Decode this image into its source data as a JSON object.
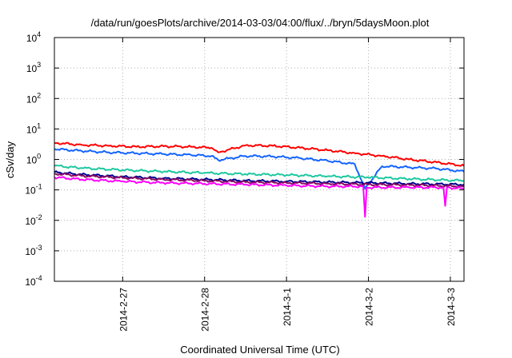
{
  "chart_data": {
    "type": "line",
    "title": "/data/run/goesPlots/archive/2014-03-03/04:00/flux/../bryn/5daysMoon.plot",
    "xlabel": "Coordinated Universal Time (UTC)",
    "ylabel": "cSv/day",
    "y_scale": "log",
    "ylim": [
      0.0001,
      10000
    ],
    "xlim": [
      "2014-02-26 04:00",
      "2014-03-03 04:00"
    ],
    "grid": true,
    "y_ticks": [
      {
        "base": "10",
        "exp": "4",
        "value": 10000
      },
      {
        "base": "10",
        "exp": "3",
        "value": 1000
      },
      {
        "base": "10",
        "exp": "2",
        "value": 100
      },
      {
        "base": "10",
        "exp": "1",
        "value": 10
      },
      {
        "base": "10",
        "exp": "0",
        "value": 1
      },
      {
        "base": "10",
        "exp": "-1",
        "value": 0.1
      },
      {
        "base": "10",
        "exp": "-2",
        "value": 0.01
      },
      {
        "base": "10",
        "exp": "-3",
        "value": 0.001
      },
      {
        "base": "10",
        "exp": "-4",
        "value": 0.0001
      }
    ],
    "x_ticks": [
      {
        "label": "2014-2-27",
        "value": "2014-02-27 00:00"
      },
      {
        "label": "2014-2-28",
        "value": "2014-02-28 00:00"
      },
      {
        "label": "2014-3-1",
        "value": "2014-03-01 00:00"
      },
      {
        "label": "2014-3-2",
        "value": "2014-03-02 00:00"
      },
      {
        "label": "2014-3-3",
        "value": "2014-03-03 00:00"
      }
    ],
    "series": [
      {
        "color": "#ff0000",
        "x": [
          "2014-02-26 04:00",
          "2014-02-26 12:00",
          "2014-02-26 20:00",
          "2014-02-27 04:00",
          "2014-02-27 12:00",
          "2014-02-27 20:00",
          "2014-02-28 02:00",
          "2014-02-28 04:00",
          "2014-02-28 12:00",
          "2014-02-28 20:00",
          "2014-03-01 04:00",
          "2014-03-01 12:00",
          "2014-03-01 20:00",
          "2014-03-02 04:00",
          "2014-03-02 12:00",
          "2014-03-02 20:00",
          "2014-03-03 04:00"
        ],
        "y": [
          3.5,
          3.0,
          2.8,
          2.6,
          2.7,
          2.6,
          2.4,
          1.7,
          2.9,
          2.8,
          2.4,
          2.0,
          1.6,
          1.3,
          1.0,
          0.8,
          0.62
        ]
      },
      {
        "color": "#1464ff",
        "x": [
          "2014-02-26 04:00",
          "2014-02-26 12:00",
          "2014-02-26 20:00",
          "2014-02-27 04:00",
          "2014-02-27 12:00",
          "2014-02-27 20:00",
          "2014-02-28 02:00",
          "2014-02-28 04:00",
          "2014-02-28 12:00",
          "2014-02-28 20:00",
          "2014-03-01 04:00",
          "2014-03-01 12:00",
          "2014-03-01 20:00",
          "2014-03-01 23:00",
          "2014-03-02 04:00",
          "2014-03-02 12:00",
          "2014-03-02 20:00",
          "2014-03-03 04:00"
        ],
        "y": [
          2.2,
          1.9,
          1.7,
          1.6,
          1.5,
          1.4,
          1.3,
          0.95,
          1.3,
          1.25,
          1.1,
          0.9,
          0.7,
          0.11,
          0.6,
          0.55,
          0.5,
          0.4
        ]
      },
      {
        "color": "#1ec8a0",
        "x": [
          "2014-02-26 04:00",
          "2014-02-26 12:00",
          "2014-02-27 00:00",
          "2014-02-27 12:00",
          "2014-02-28 00:00",
          "2014-02-28 12:00",
          "2014-03-01 00:00",
          "2014-03-01 12:00",
          "2014-03-02 00:00",
          "2014-03-02 12:00",
          "2014-03-03 04:00"
        ],
        "y": [
          0.62,
          0.52,
          0.45,
          0.4,
          0.36,
          0.33,
          0.31,
          0.28,
          0.26,
          0.23,
          0.2
        ]
      },
      {
        "color": "#000090",
        "x": [
          "2014-02-26 04:00",
          "2014-02-26 12:00",
          "2014-02-27 00:00",
          "2014-02-27 12:00",
          "2014-02-28 00:00",
          "2014-02-28 12:00",
          "2014-03-01 00:00",
          "2014-03-01 12:00",
          "2014-03-02 00:00",
          "2014-03-02 12:00",
          "2014-03-03 04:00"
        ],
        "y": [
          0.38,
          0.32,
          0.27,
          0.24,
          0.22,
          0.2,
          0.19,
          0.18,
          0.17,
          0.16,
          0.15
        ]
      },
      {
        "color": "#8c0a64",
        "x": [
          "2014-02-26 04:00",
          "2014-02-26 12:00",
          "2014-02-27 00:00",
          "2014-02-27 12:00",
          "2014-02-28 00:00",
          "2014-02-28 12:00",
          "2014-03-01 00:00",
          "2014-03-01 12:00",
          "2014-03-02 00:00",
          "2014-03-02 12:00",
          "2014-03-03 04:00"
        ],
        "y": [
          0.34,
          0.29,
          0.25,
          0.22,
          0.2,
          0.18,
          0.17,
          0.16,
          0.15,
          0.145,
          0.13
        ]
      },
      {
        "color": "#ff00ff",
        "x": [
          "2014-02-26 04:00",
          "2014-02-26 12:00",
          "2014-02-27 00:00",
          "2014-02-27 12:00",
          "2014-02-28 00:00",
          "2014-02-28 12:00",
          "2014-03-01 00:00",
          "2014-03-01 12:00",
          "2014-03-01 22:30",
          "2014-03-01 23:00",
          "2014-03-01 23:30",
          "2014-03-02 12:00",
          "2014-03-02 22:00",
          "2014-03-02 22:30",
          "2014-03-02 23:00",
          "2014-03-03 04:00"
        ],
        "y": [
          0.26,
          0.22,
          0.19,
          0.17,
          0.16,
          0.15,
          0.14,
          0.13,
          0.13,
          0.013,
          0.12,
          0.12,
          0.12,
          0.03,
          0.12,
          0.11
        ]
      }
    ]
  }
}
